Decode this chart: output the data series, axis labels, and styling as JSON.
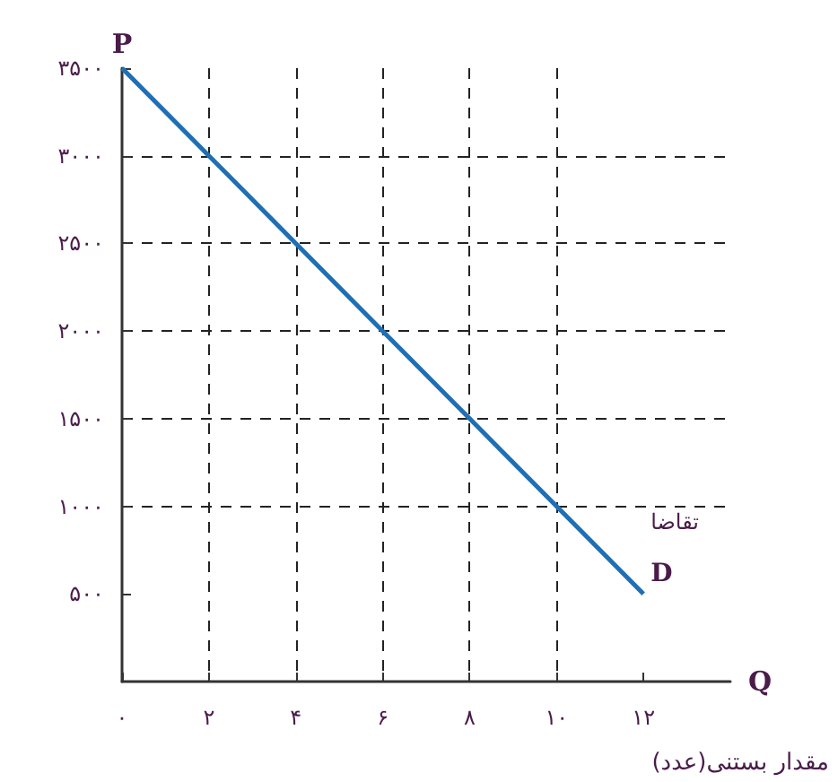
{
  "chart_data": {
    "type": "line",
    "xlabel": "Q",
    "ylabel": "P",
    "x": [
      0,
      2,
      4,
      6,
      8,
      10,
      12
    ],
    "series": [
      {
        "color": "#1f6fb5",
        "values": [
          3500,
          3000,
          2500,
          2000,
          1500,
          1000,
          500
        ]
      }
    ],
    "xlim": [
      0,
      14
    ],
    "ylim": [
      0,
      3500
    ],
    "xticks": [
      {
        "value": 0,
        "label": "۰"
      },
      {
        "value": 2,
        "label": "۲"
      },
      {
        "value": 4,
        "label": "۴"
      },
      {
        "value": 6,
        "label": "۶"
      },
      {
        "value": 8,
        "label": "۸"
      },
      {
        "value": 10,
        "label": "۱۰"
      },
      {
        "value": 12,
        "label": "۱۲"
      }
    ],
    "yticks": [
      {
        "value": 500,
        "label": "۵۰۰"
      },
      {
        "value": 1000,
        "label": "۱۰۰۰"
      },
      {
        "value": 1500,
        "label": "۱۵۰۰"
      },
      {
        "value": 2000,
        "label": "۲۰۰۰"
      },
      {
        "value": 2500,
        "label": "۲۵۰۰"
      },
      {
        "value": 3000,
        "label": "۳۰۰۰"
      },
      {
        "value": 3500,
        "label": "۳۵۰۰"
      }
    ],
    "annotations": [
      {
        "text": "تقاضا",
        "x": 12,
        "y": 500
      },
      {
        "text": "D",
        "x": 12,
        "y": 500
      },
      "مقدار بستنی(عدد)"
    ],
    "grid": true,
    "marker": "none",
    "line_style": "solid"
  }
}
